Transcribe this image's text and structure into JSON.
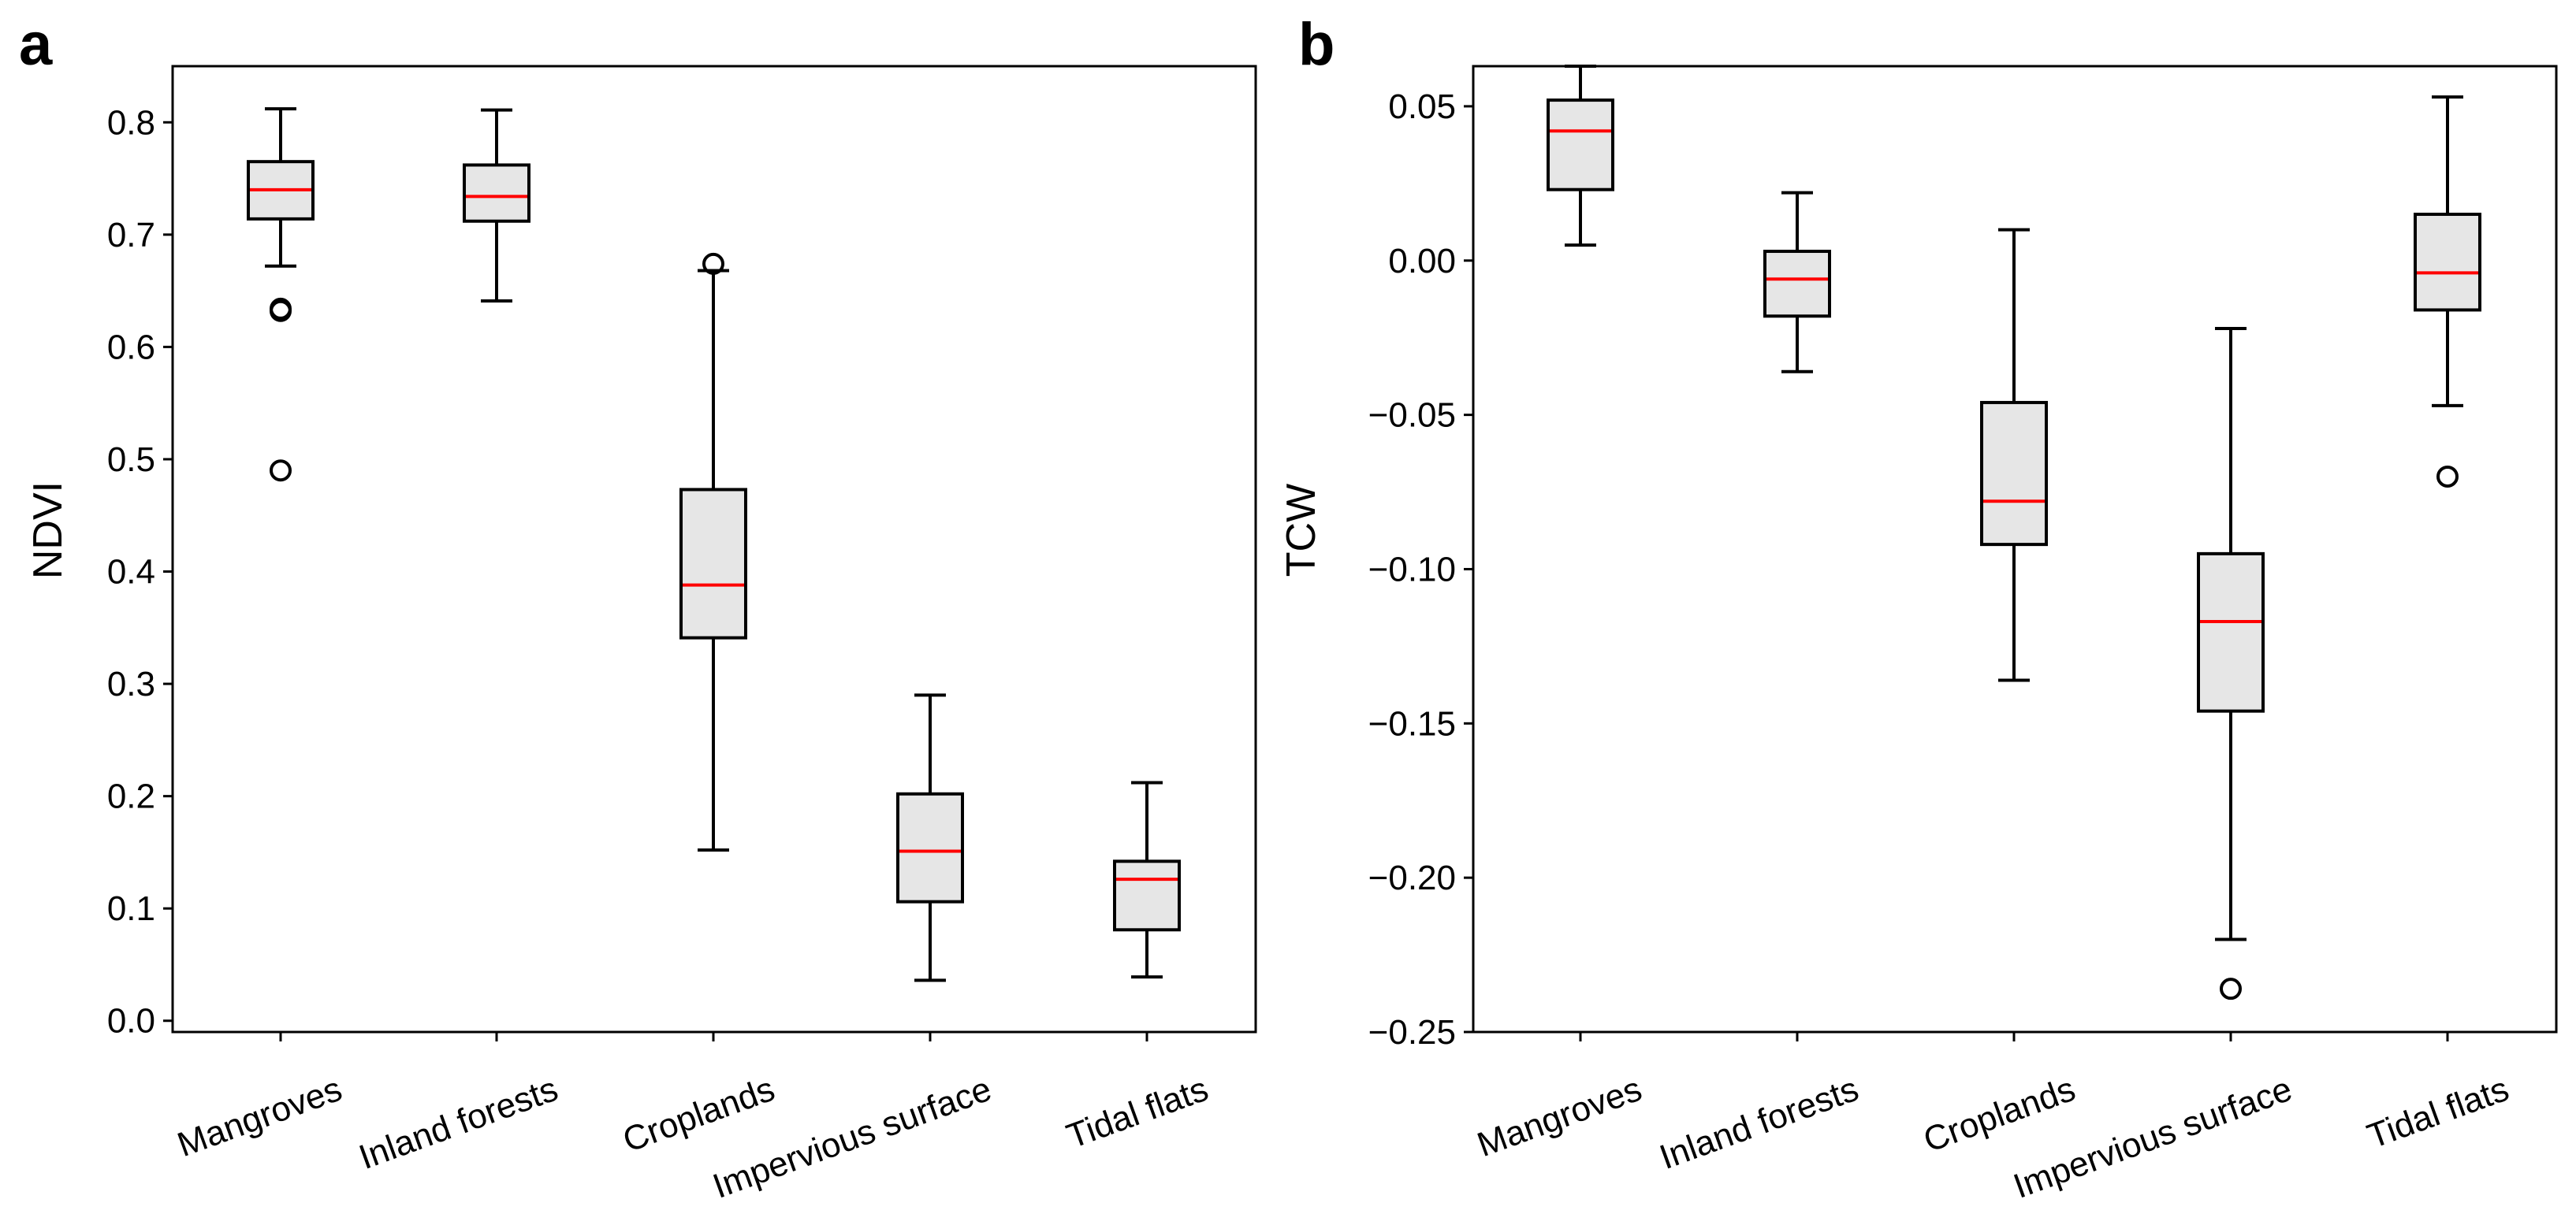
{
  "chart_data": [
    {
      "type": "box",
      "panel": "a",
      "ylabel": "NDVI",
      "ylim": [
        -0.01,
        0.85
      ],
      "yticks": [
        0.0,
        0.1,
        0.2,
        0.3,
        0.4,
        0.5,
        0.6,
        0.7,
        0.8
      ],
      "ytick_labels": [
        "0.0",
        "0.1",
        "0.2",
        "0.3",
        "0.4",
        "0.5",
        "0.6",
        "0.7",
        "0.8"
      ],
      "categories": [
        "Mangroves",
        "Inland forests",
        "Croplands",
        "Impervious surface",
        "Tidal flats"
      ],
      "boxes": [
        {
          "whislo": 0.672,
          "q1": 0.714,
          "med": 0.74,
          "q3": 0.765,
          "whishi": 0.812,
          "fliers": [
            0.632,
            0.634,
            0.49
          ]
        },
        {
          "whislo": 0.641,
          "q1": 0.712,
          "med": 0.734,
          "q3": 0.762,
          "whishi": 0.811,
          "fliers": []
        },
        {
          "whislo": 0.152,
          "q1": 0.341,
          "med": 0.388,
          "q3": 0.473,
          "whishi": 0.668,
          "fliers": [
            0.674
          ]
        },
        {
          "whislo": 0.036,
          "q1": 0.106,
          "med": 0.151,
          "q3": 0.202,
          "whishi": 0.29,
          "fliers": []
        },
        {
          "whislo": 0.039,
          "q1": 0.081,
          "med": 0.126,
          "q3": 0.142,
          "whishi": 0.212,
          "fliers": []
        }
      ]
    },
    {
      "type": "box",
      "panel": "b",
      "ylabel": "TCW",
      "ylim": [
        -0.25,
        0.063
      ],
      "yticks": [
        0.05,
        0.0,
        -0.05,
        -0.1,
        -0.15,
        -0.2,
        -0.25
      ],
      "ytick_labels": [
        "0.05",
        "0.00",
        "−0.05",
        "−0.10",
        "−0.15",
        "−0.20",
        "−0.25"
      ],
      "categories": [
        "Mangroves",
        "Inland forests",
        "Croplands",
        "Impervious surface",
        "Tidal flats"
      ],
      "boxes": [
        {
          "whislo": 0.005,
          "q1": 0.023,
          "med": 0.042,
          "q3": 0.052,
          "whishi": 0.063,
          "fliers": []
        },
        {
          "whislo": -0.036,
          "q1": -0.018,
          "med": -0.006,
          "q3": 0.003,
          "whishi": 0.022,
          "fliers": []
        },
        {
          "whislo": -0.136,
          "q1": -0.092,
          "med": -0.078,
          "q3": -0.046,
          "whishi": 0.01,
          "fliers": []
        },
        {
          "whislo": -0.22,
          "q1": -0.146,
          "med": -0.117,
          "q3": -0.095,
          "whishi": -0.022,
          "fliers": [
            -0.236
          ]
        },
        {
          "whislo": -0.047,
          "q1": -0.016,
          "med": -0.004,
          "q3": 0.015,
          "whishi": 0.053,
          "fliers": [
            -0.07
          ]
        }
      ]
    }
  ]
}
